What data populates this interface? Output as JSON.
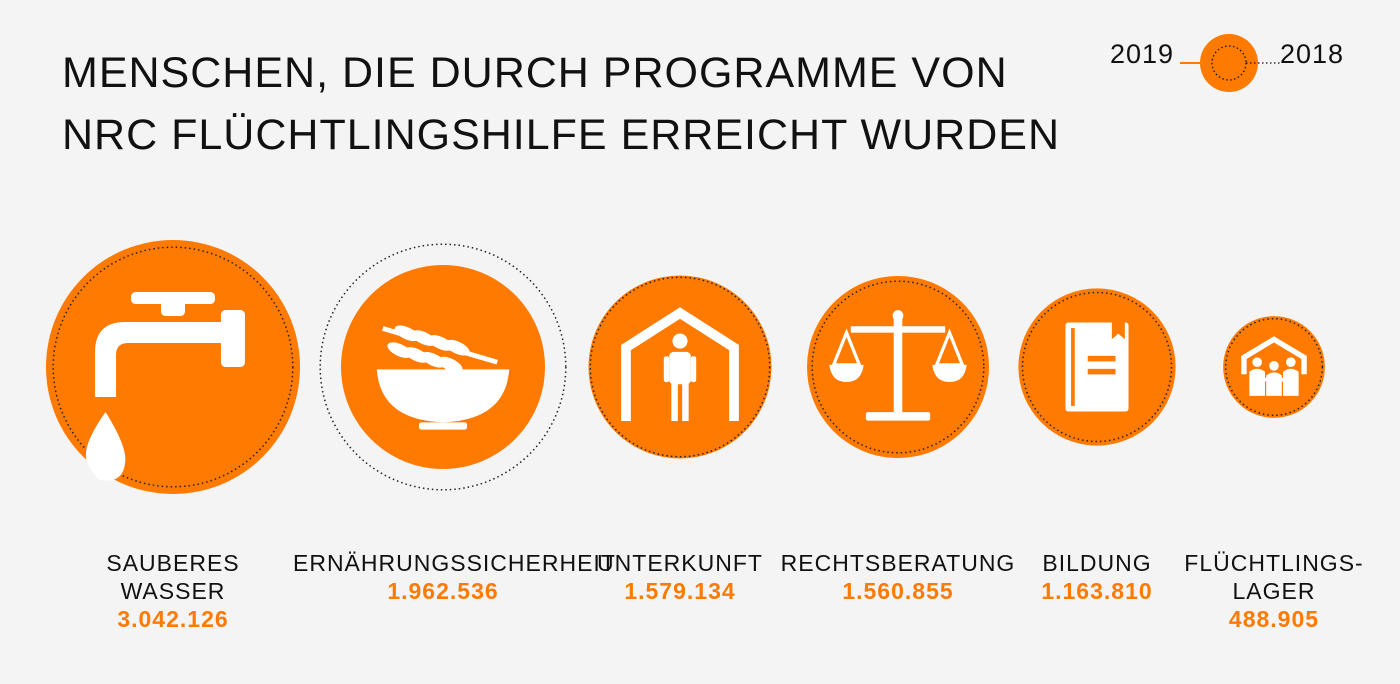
{
  "title": {
    "line1": "MENSCHEN, DIE DURCH PROGRAMME VON",
    "line2": "NRC FLÜCHTLINGSHILFE ERREICHT WURDEN"
  },
  "legend": {
    "year_filled": "2019",
    "year_dotted": "2018"
  },
  "colors": {
    "accent": "#ff7a00",
    "background": "#f4f4f4",
    "text": "#111111"
  },
  "chart_data": {
    "type": "bubble",
    "title": "MENSCHEN, DIE DURCH PROGRAMME VON NRC FLÜCHTLINGSHILFE ERREICHT WURDEN",
    "series": [
      {
        "name": "2019",
        "style": "filled-circle"
      },
      {
        "name": "2018",
        "style": "dotted-outline"
      }
    ],
    "categories": [
      {
        "label_lines": [
          "SAUBERES",
          "WASSER"
        ],
        "value_label": "3.042.126",
        "value_2019": 3042126,
        "relative_2018_vs_2019": 0.89,
        "icon": "water-tap-icon"
      },
      {
        "label_lines": [
          "ERNÄHRUNGSSICHERHEIT"
        ],
        "value_label": "1.962.536",
        "value_2019": 1962536,
        "relative_2018_vs_2019": 1.45,
        "icon": "grain-bowl-icon"
      },
      {
        "label_lines": [
          "UNTERKUNFT"
        ],
        "value_label": "1.579.134",
        "value_2019": 1579134,
        "relative_2018_vs_2019": 0.96,
        "icon": "shelter-person-icon"
      },
      {
        "label_lines": [
          "RECHTSBERATUNG"
        ],
        "value_label": "1.560.855",
        "value_2019": 1560855,
        "relative_2018_vs_2019": 0.89,
        "icon": "scales-icon"
      },
      {
        "label_lines": [
          "BILDUNG"
        ],
        "value_label": "1.163.810",
        "value_2019": 1163810,
        "relative_2018_vs_2019": 0.9,
        "icon": "book-icon"
      },
      {
        "label_lines": [
          "FLÜCHTLINGS-",
          "LAGER"
        ],
        "value_label": "488.905",
        "value_2019": 488905,
        "relative_2018_vs_2019": 0.9,
        "icon": "camp-family-icon"
      }
    ]
  }
}
